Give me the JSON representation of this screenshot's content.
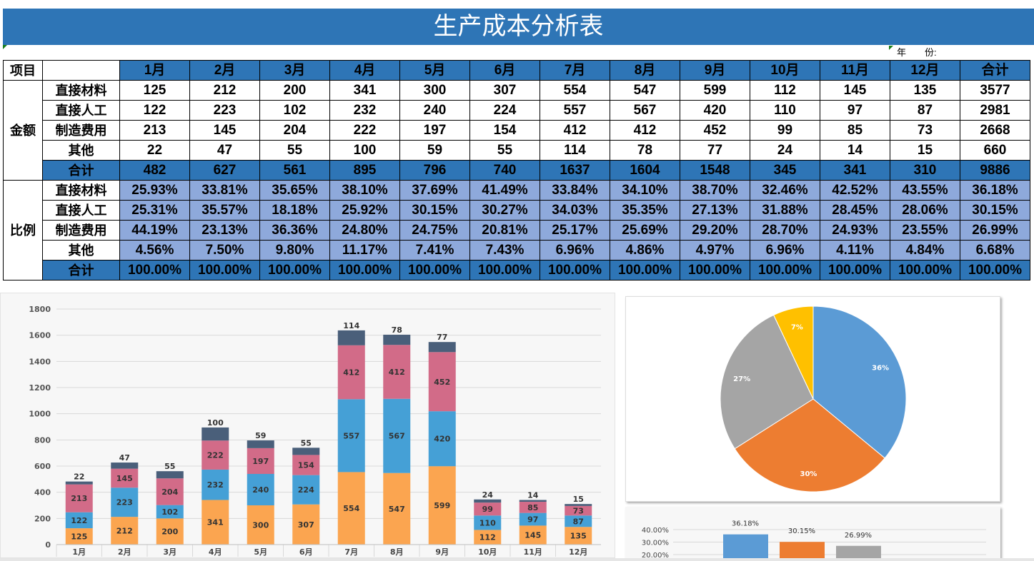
{
  "title": "生产成本分析表",
  "year_label": "年　　份:",
  "table": {
    "corner": "项目",
    "months": [
      "1月",
      "2月",
      "3月",
      "4月",
      "5月",
      "6月",
      "7月",
      "8月",
      "9月",
      "10月",
      "11月",
      "12月",
      "合计"
    ],
    "amount_group": "金额",
    "ratio_group": "比例",
    "amount_rows": [
      {
        "label": "直接材料",
        "values": [
          "125",
          "212",
          "200",
          "341",
          "300",
          "307",
          "554",
          "547",
          "599",
          "112",
          "145",
          "135",
          "3577"
        ]
      },
      {
        "label": "直接人工",
        "values": [
          "122",
          "223",
          "102",
          "232",
          "240",
          "224",
          "557",
          "567",
          "420",
          "110",
          "97",
          "87",
          "2981"
        ]
      },
      {
        "label": "制造费用",
        "values": [
          "213",
          "145",
          "204",
          "222",
          "197",
          "154",
          "412",
          "412",
          "452",
          "99",
          "85",
          "73",
          "2668"
        ]
      },
      {
        "label": "其他",
        "values": [
          "22",
          "47",
          "55",
          "100",
          "59",
          "55",
          "114",
          "78",
          "77",
          "24",
          "14",
          "15",
          "660"
        ]
      },
      {
        "label": "合计",
        "values": [
          "482",
          "627",
          "561",
          "895",
          "796",
          "740",
          "1637",
          "1604",
          "1548",
          "345",
          "341",
          "310",
          "9886"
        ]
      }
    ],
    "ratio_rows": [
      {
        "label": "直接材料",
        "values": [
          "25.93%",
          "33.81%",
          "35.65%",
          "38.10%",
          "37.69%",
          "41.49%",
          "33.84%",
          "34.10%",
          "38.70%",
          "32.46%",
          "42.52%",
          "43.55%",
          "36.18%"
        ]
      },
      {
        "label": "直接人工",
        "values": [
          "25.31%",
          "35.57%",
          "18.18%",
          "25.92%",
          "30.15%",
          "30.27%",
          "34.03%",
          "35.35%",
          "27.13%",
          "31.88%",
          "28.45%",
          "28.06%",
          "30.15%"
        ]
      },
      {
        "label": "制造费用",
        "values": [
          "44.19%",
          "23.13%",
          "36.36%",
          "24.80%",
          "24.75%",
          "20.81%",
          "25.17%",
          "25.69%",
          "29.20%",
          "28.70%",
          "24.93%",
          "23.55%",
          "26.99%"
        ]
      },
      {
        "label": "其他",
        "values": [
          "4.56%",
          "7.50%",
          "9.80%",
          "11.17%",
          "7.41%",
          "7.43%",
          "6.96%",
          "4.86%",
          "4.97%",
          "6.96%",
          "4.11%",
          "4.84%",
          "6.68%"
        ]
      },
      {
        "label": "合计",
        "values": [
          "100.00%",
          "100.00%",
          "100.00%",
          "100.00%",
          "100.00%",
          "100.00%",
          "100.00%",
          "100.00%",
          "100.00%",
          "100.00%",
          "100.00%",
          "100.00%",
          "100.00%"
        ]
      }
    ]
  },
  "colors": {
    "header": "#2E75B6",
    "ratio_cell": "#8EA9DB"
  },
  "chart_data": [
    {
      "type": "bar",
      "stacked": true,
      "categories": [
        "1月",
        "2月",
        "3月",
        "4月",
        "5月",
        "6月",
        "7月",
        "8月",
        "9月",
        "10月",
        "11月",
        "12月"
      ],
      "ylim": [
        0,
        1800
      ],
      "yticks": [
        "0",
        "200",
        "400",
        "600",
        "800",
        "1000",
        "1200",
        "1400",
        "1600",
        "1800"
      ],
      "grid": true,
      "series": [
        {
          "values": [
            125,
            212,
            200,
            341,
            300,
            307,
            554,
            547,
            599,
            112,
            145,
            135
          ],
          "color": "#FBA550"
        },
        {
          "values": [
            122,
            223,
            102,
            232,
            240,
            224,
            557,
            567,
            420,
            110,
            97,
            87
          ],
          "color": "#45A0D6"
        },
        {
          "values": [
            213,
            145,
            204,
            222,
            197,
            154,
            412,
            412,
            452,
            99,
            85,
            73
          ],
          "color": "#D26B88"
        },
        {
          "values": [
            22,
            47,
            55,
            100,
            59,
            55,
            114,
            78,
            77,
            24,
            14,
            15
          ],
          "color": "#4A5F7A"
        }
      ]
    },
    {
      "type": "pie",
      "values": [
        36,
        30,
        27,
        7
      ],
      "labels": [
        "36%",
        "30%",
        "27%",
        "7%"
      ],
      "colors": [
        "#5B9BD5",
        "#ED7D31",
        "#A5A5A5",
        "#FFC000"
      ]
    },
    {
      "type": "bar",
      "values": [
        36.18,
        30.15,
        26.99
      ],
      "labels": [
        "36.18%",
        "30.15%",
        "26.99%"
      ],
      "yticks": [
        "20.00%",
        "30.00%",
        "40.00%"
      ],
      "colors": [
        "#5B9BD5",
        "#ED7D31",
        "#A5A5A5"
      ],
      "grid": true
    }
  ]
}
